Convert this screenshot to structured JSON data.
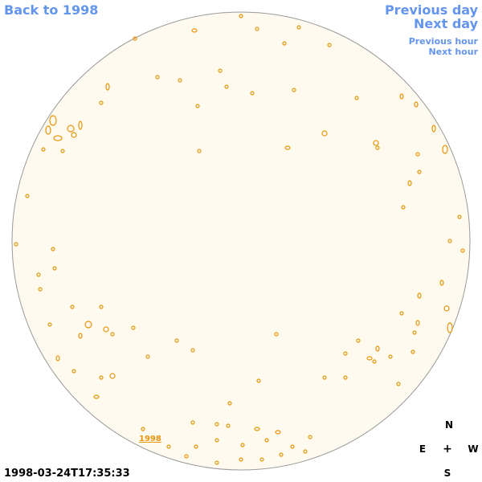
{
  "nav": {
    "back_label": "Back to 1998",
    "prev_day_label": "Previous day",
    "next_day_label": "Next day",
    "prev_hour_label": "Previous hour",
    "next_hour_label": "Next hour"
  },
  "observation": {
    "timestamp": "1998-03-24T17:35:33",
    "year_label": "1998"
  },
  "compass": {
    "north": "N",
    "east": "E",
    "center": "+",
    "west": "W",
    "south": "S"
  },
  "colors": {
    "link": "#6495ed",
    "disk_fill": "#fffaf0",
    "disk_border": "#999999",
    "feature_contour": "#e8950a"
  }
}
